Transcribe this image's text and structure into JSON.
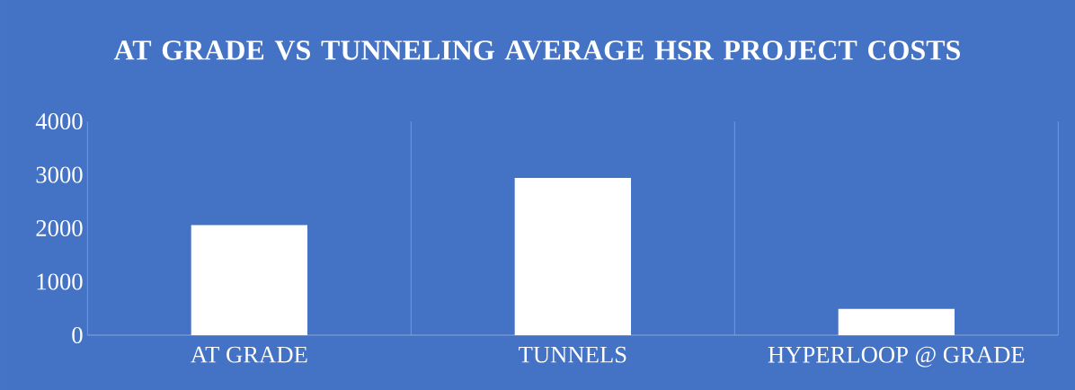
{
  "chart_data": {
    "type": "bar",
    "title": "AT GRADE VS TUNNELING AVERAGE HSR PROJECT COSTS",
    "categories": [
      "AT GRADE",
      "TUNNELS",
      "HYPERLOOP @ GRADE"
    ],
    "values": [
      2060,
      2940,
      490
    ],
    "color": "#ffffff",
    "ylim": [
      0,
      4000
    ],
    "yticks": [
      0,
      1000,
      2000,
      3000,
      4000
    ],
    "grid": "x"
  }
}
